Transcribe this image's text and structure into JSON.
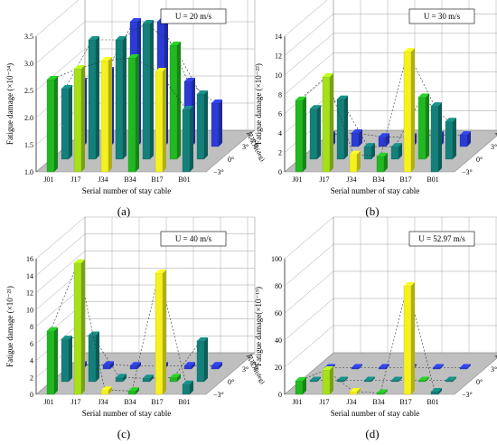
{
  "yaxis_label_prefix": "Fatigue damage",
  "xlabel": "Serial number of stay cable",
  "wind_axis_label": "风攻角(deg)",
  "cables": [
    "J01",
    "J17",
    "J34",
    "B34",
    "B17",
    "B01"
  ],
  "attack_angles": [
    "3°",
    "0°",
    "−3°"
  ],
  "colors": {
    "green": "#22b822",
    "yellowgreen": "#a6e01a",
    "yellow": "#f4f11e",
    "teal": "#14807a",
    "blue": "#2b3cd6",
    "grid": "#8a8a8a",
    "floor": "#bfbfbf"
  },
  "chart_data": [
    {
      "type": "bar",
      "panel": "(a)",
      "speed_label": "U = 20 m/s",
      "ylabel": "Fatigue damage (×10⁻²⁴)",
      "yticks": [
        "1.0",
        "1.5",
        "2.0",
        "2.5",
        "3.0",
        "3.5"
      ],
      "ylim": [
        1.0,
        3.5
      ],
      "categories": [
        "J01",
        "J17",
        "J34",
        "B34",
        "B17",
        "B01"
      ],
      "series": [
        {
          "name": "−3°",
          "values": [
            2.7,
            2.9,
            3.05,
            3.1,
            2.85,
            2.15
          ]
        },
        {
          "name": "0°",
          "values": [
            2.3,
            3.2,
            3.2,
            3.5,
            3.1,
            2.2
          ]
        },
        {
          "name": "3°",
          "values": [
            2.2,
            2.4,
            3.3,
            3.3,
            2.2,
            1.8
          ]
        }
      ]
    },
    {
      "type": "bar",
      "panel": "(b)",
      "speed_label": "U = 30 m/s",
      "ylabel": "Fatigue damage (×10⁻²²)",
      "yticks": [
        "0",
        "2",
        "4",
        "6",
        "8",
        "10",
        "12",
        "14"
      ],
      "ylim": [
        0,
        14
      ],
      "categories": [
        "J01",
        "J17",
        "J34",
        "B34",
        "B17",
        "B01"
      ],
      "series": [
        {
          "name": "−3°",
          "values": [
            7.4,
            9.8,
            1.8,
            1.6,
            12.4,
            6.8
          ]
        },
        {
          "name": "0°",
          "values": [
            5.2,
            6.2,
            1.3,
            1.3,
            6.4,
            3.9
          ]
        },
        {
          "name": "3°",
          "values": [
            1.2,
            1.4,
            1.0,
            1.0,
            1.2,
            1.2
          ]
        }
      ]
    },
    {
      "type": "bar",
      "panel": "(c)",
      "speed_label": "U = 40 m/s",
      "ylabel": "Fatigue damage (×10⁻²¹)",
      "yticks": [
        "0",
        "2",
        "4",
        "6",
        "8",
        "10",
        "12",
        "14",
        "16"
      ],
      "ylim": [
        0,
        16
      ],
      "categories": [
        "J01",
        "J17",
        "J34",
        "B34",
        "B17",
        "B01"
      ],
      "series": [
        {
          "name": "−3°",
          "values": [
            7.5,
            15.5,
            0.5,
            0.4,
            14.3,
            1.2
          ]
        },
        {
          "name": "0°",
          "values": [
            5.0,
            5.5,
            0.5,
            0.4,
            0.5,
            4.8
          ]
        },
        {
          "name": "3°",
          "values": [
            0.5,
            0.5,
            0.4,
            0.4,
            0.4,
            0.4
          ]
        }
      ]
    },
    {
      "type": "bar",
      "panel": "(d)",
      "speed_label": "U = 52.97 m/s",
      "ylabel": "Fatigue damage(×10⁻¹⁹)",
      "yticks": [
        "0",
        "20",
        "40",
        "60",
        "80",
        "100"
      ],
      "ylim": [
        0,
        100
      ],
      "categories": [
        "J01",
        "J17",
        "J34",
        "B34",
        "B17",
        "B01"
      ],
      "series": [
        {
          "name": "−3°",
          "values": [
            10,
            18,
            2,
            1,
            80,
            2
          ]
        },
        {
          "name": "0°",
          "values": [
            1,
            1,
            1,
            1,
            1,
            1
          ]
        },
        {
          "name": "3°",
          "values": [
            1,
            1,
            1,
            1,
            1,
            1
          ]
        }
      ]
    }
  ]
}
